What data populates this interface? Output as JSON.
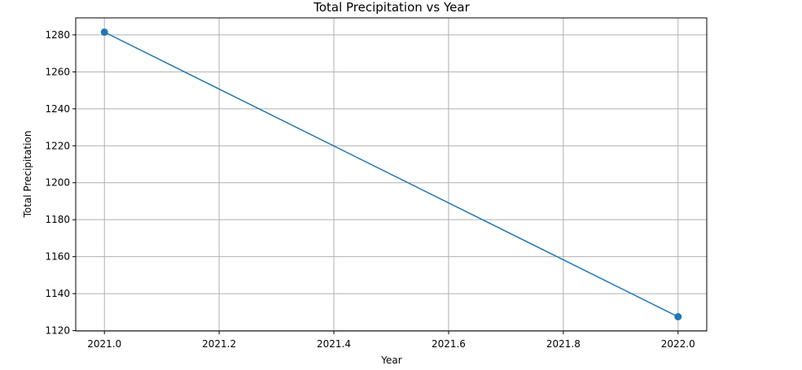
{
  "chart_data": {
    "type": "line",
    "title": "Total Precipitation vs Year",
    "xlabel": "Year",
    "ylabel": "Total Precipitation",
    "x": [
      2021.0,
      2022.0
    ],
    "series": [
      {
        "values": [
          1281.5,
          1127.5
        ],
        "color": "#1f77b4",
        "marker": "circle"
      }
    ],
    "xlim": [
      2020.95,
      2022.05
    ],
    "ylim": [
      1119.8,
      1289.2
    ],
    "xticks": [
      "2021.0",
      "2021.2",
      "2021.4",
      "2021.6",
      "2021.8",
      "2022.0"
    ],
    "xtick_values": [
      2021.0,
      2021.2,
      2021.4,
      2021.6,
      2021.8,
      2022.0
    ],
    "yticks": [
      "1120",
      "1140",
      "1160",
      "1180",
      "1200",
      "1220",
      "1240",
      "1260",
      "1280"
    ],
    "ytick_values": [
      1120,
      1140,
      1160,
      1180,
      1200,
      1220,
      1240,
      1260,
      1280
    ],
    "grid": true,
    "grid_color": "#b0b0b0",
    "legend": false
  }
}
